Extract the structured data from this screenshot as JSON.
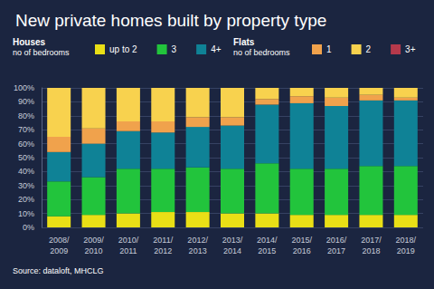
{
  "chart_data": {
    "type": "bar",
    "title": "New private homes built by property type",
    "source": "Source: dataloft, MHCLG",
    "stacked": true,
    "grid": true,
    "categories": [
      "2008/2009",
      "2009/2010",
      "2010/2011",
      "2011/2012",
      "2012/2013",
      "2013/2014",
      "2014/2015",
      "2015/2016",
      "2016/2017",
      "2017/2018",
      "2018/2019"
    ],
    "legend_groups": [
      {
        "title": "Houses",
        "subtitle": "no of bedrooms"
      },
      {
        "title": "Flats",
        "subtitle": "no of bedrooms"
      }
    ],
    "series": [
      {
        "name": "up to 2",
        "group": "Houses",
        "color": "#e9df16",
        "values": [
          8,
          9,
          10,
          11,
          11,
          10,
          10,
          9,
          9,
          9,
          9
        ]
      },
      {
        "name": "3",
        "group": "Houses",
        "color": "#22c43c",
        "values": [
          25,
          27,
          32,
          31,
          32,
          32,
          36,
          33,
          33,
          35,
          35
        ]
      },
      {
        "name": "4+",
        "group": "Houses",
        "color": "#0f8296",
        "values": [
          21,
          24,
          27,
          26,
          29,
          31,
          42,
          47,
          45,
          47,
          47
        ]
      },
      {
        "name": "1",
        "group": "Flats",
        "color": "#f0a24c",
        "values": [
          11,
          11,
          7,
          8,
          7,
          6,
          4,
          5,
          6,
          4,
          2
        ]
      },
      {
        "name": "2",
        "group": "Flats",
        "color": "#f8d24e",
        "values": [
          35,
          29,
          24,
          24,
          21,
          21,
          8,
          6,
          7,
          5,
          7
        ]
      },
      {
        "name": "3+",
        "group": "Flats",
        "color": "#b5394b",
        "values": [
          0,
          0,
          0,
          0,
          0,
          0,
          0,
          0,
          0,
          0,
          0
        ]
      }
    ],
    "ylim": [
      0,
      100
    ],
    "yticks": [
      {
        "value": 0,
        "label": "0%"
      },
      {
        "value": 10,
        "label": "10%"
      },
      {
        "value": 20,
        "label": "20%"
      },
      {
        "value": 30,
        "label": "30%"
      },
      {
        "value": 40,
        "label": "40%"
      },
      {
        "value": 50,
        "label": "50%"
      },
      {
        "value": 60,
        "label": "60%"
      },
      {
        "value": 70,
        "label": "70%"
      },
      {
        "value": 80,
        "label": "80%"
      },
      {
        "value": 90,
        "label": "90%"
      },
      {
        "value": 100,
        "label": "100%"
      }
    ]
  }
}
